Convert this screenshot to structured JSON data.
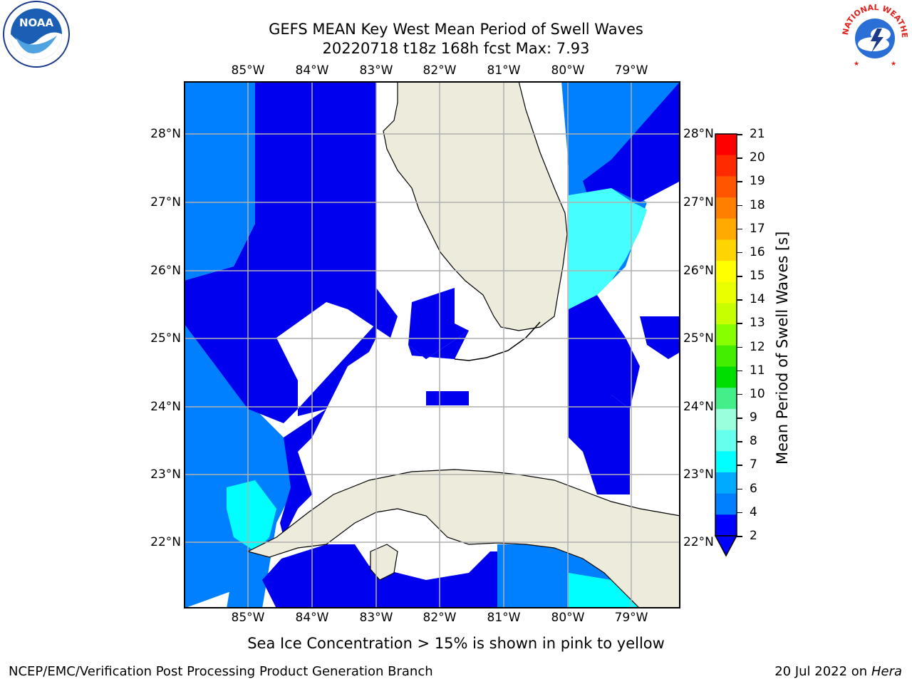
{
  "header": {
    "title_line1": "GEFS MEAN Key West Mean Period of Swell Waves",
    "title_line2": "20220718 t18z 168h fcst   Max: 7.93"
  },
  "logos": {
    "left_name": "noaa-logo",
    "left_text": "NOAA",
    "right_name": "nws-logo",
    "right_text": "NATIONAL WEATHER SERVICE"
  },
  "map": {
    "lon_labels": [
      "85°W",
      "84°W",
      "83°W",
      "82°W",
      "81°W",
      "80°W",
      "79°W"
    ],
    "lat_labels": [
      "28°N",
      "27°N",
      "26°N",
      "25°N",
      "24°N",
      "23°N",
      "22°N"
    ],
    "colors": {
      "land": "#ecebdc",
      "band_2_4": "#0080ff",
      "below_2": "#0000ee",
      "band_4_6": "#00ffff",
      "band_6_8": "#45ffff",
      "grid": "#b0b0b0"
    }
  },
  "colorbar": {
    "label": "Mean Period of Swell Waves [s]",
    "ticks": [
      "21",
      "20",
      "19",
      "18",
      "17",
      "16",
      "15",
      "14",
      "13",
      "12",
      "11",
      "10",
      "9",
      "8",
      "7",
      "6",
      "4",
      "2"
    ],
    "colors": [
      "#ff0000",
      "#ff2a00",
      "#ff5500",
      "#ff7f00",
      "#ffaa00",
      "#ffd400",
      "#ffff00",
      "#eaff00",
      "#c8ff00",
      "#88ff00",
      "#44ee00",
      "#00dd00",
      "#44ee88",
      "#99ffdd",
      "#66ffee",
      "#00ffff",
      "#00aaff",
      "#0080ff",
      "#0000ff"
    ]
  },
  "note": "Sea Ice Concentration > 15% is shown in pink to yellow",
  "footer": {
    "left": "NCEP/EMC/Verification Post Processing Product Generation Branch",
    "date": "20 Jul 2022 on ",
    "machine": "Hera"
  }
}
